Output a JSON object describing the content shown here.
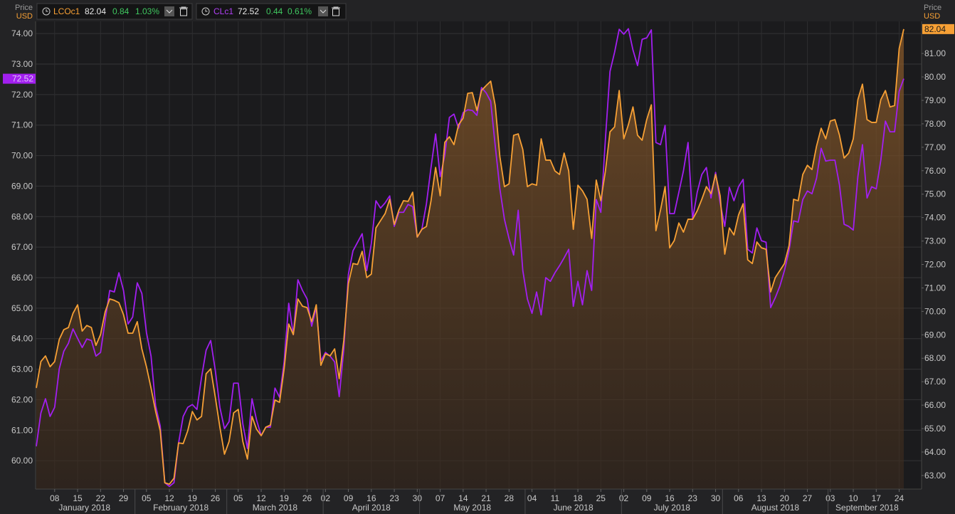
{
  "chart_data": {
    "type": "line",
    "y_label": "Price",
    "y_unit": "USD",
    "y2_label": "Price",
    "y2_unit": "USD",
    "x": [
      "2018-01-02",
      "2018-01-03",
      "2018-01-04",
      "2018-01-05",
      "2018-01-08",
      "2018-01-09",
      "2018-01-10",
      "2018-01-11",
      "2018-01-12",
      "2018-01-15",
      "2018-01-16",
      "2018-01-17",
      "2018-01-18",
      "2018-01-19",
      "2018-01-22",
      "2018-01-23",
      "2018-01-24",
      "2018-01-25",
      "2018-01-26",
      "2018-01-29",
      "2018-01-30",
      "2018-01-31",
      "2018-02-01",
      "2018-02-02",
      "2018-02-05",
      "2018-02-06",
      "2018-02-07",
      "2018-02-08",
      "2018-02-09",
      "2018-02-12",
      "2018-02-13",
      "2018-02-14",
      "2018-02-15",
      "2018-02-16",
      "2018-02-19",
      "2018-02-20",
      "2018-02-21",
      "2018-02-22",
      "2018-02-23",
      "2018-02-26",
      "2018-02-27",
      "2018-02-28",
      "2018-03-01",
      "2018-03-02",
      "2018-03-05",
      "2018-03-06",
      "2018-03-07",
      "2018-03-08",
      "2018-03-09",
      "2018-03-12",
      "2018-03-13",
      "2018-03-14",
      "2018-03-15",
      "2018-03-16",
      "2018-03-19",
      "2018-03-20",
      "2018-03-21",
      "2018-03-22",
      "2018-03-23",
      "2018-03-26",
      "2018-03-27",
      "2018-03-28",
      "2018-03-29",
      "2018-04-02",
      "2018-04-03",
      "2018-04-04",
      "2018-04-05",
      "2018-04-06",
      "2018-04-09",
      "2018-04-10",
      "2018-04-11",
      "2018-04-12",
      "2018-04-13",
      "2018-04-16",
      "2018-04-17",
      "2018-04-18",
      "2018-04-19",
      "2018-04-20",
      "2018-04-23",
      "2018-04-24",
      "2018-04-25",
      "2018-04-26",
      "2018-04-27",
      "2018-04-30",
      "2018-05-01",
      "2018-05-02",
      "2018-05-03",
      "2018-05-04",
      "2018-05-07",
      "2018-05-08",
      "2018-05-09",
      "2018-05-10",
      "2018-05-11",
      "2018-05-14",
      "2018-05-15",
      "2018-05-16",
      "2018-05-17",
      "2018-05-18",
      "2018-05-21",
      "2018-05-22",
      "2018-05-23",
      "2018-05-24",
      "2018-05-25",
      "2018-05-28",
      "2018-05-29",
      "2018-05-30",
      "2018-05-31",
      "2018-06-01",
      "2018-06-04",
      "2018-06-05",
      "2018-06-06",
      "2018-06-07",
      "2018-06-08",
      "2018-06-11",
      "2018-06-12",
      "2018-06-13",
      "2018-06-14",
      "2018-06-15",
      "2018-06-18",
      "2018-06-19",
      "2018-06-20",
      "2018-06-21",
      "2018-06-22",
      "2018-06-25",
      "2018-06-26",
      "2018-06-27",
      "2018-06-28",
      "2018-06-29",
      "2018-07-02",
      "2018-07-03",
      "2018-07-04",
      "2018-07-05",
      "2018-07-06",
      "2018-07-09",
      "2018-07-10",
      "2018-07-11",
      "2018-07-12",
      "2018-07-13",
      "2018-07-16",
      "2018-07-17",
      "2018-07-18",
      "2018-07-19",
      "2018-07-20",
      "2018-07-23",
      "2018-07-24",
      "2018-07-25",
      "2018-07-26",
      "2018-07-27",
      "2018-07-30",
      "2018-07-31",
      "2018-08-01",
      "2018-08-02",
      "2018-08-03",
      "2018-08-06",
      "2018-08-07",
      "2018-08-08",
      "2018-08-09",
      "2018-08-10",
      "2018-08-13",
      "2018-08-14",
      "2018-08-15",
      "2018-08-16",
      "2018-08-17",
      "2018-08-20",
      "2018-08-21",
      "2018-08-22",
      "2018-08-23",
      "2018-08-24",
      "2018-08-27",
      "2018-08-28",
      "2018-08-29",
      "2018-08-30",
      "2018-08-31",
      "2018-09-03",
      "2018-09-04",
      "2018-09-05",
      "2018-09-06",
      "2018-09-07",
      "2018-09-10",
      "2018-09-11",
      "2018-09-12",
      "2018-09-13",
      "2018-09-14",
      "2018-09-17",
      "2018-09-18",
      "2018-09-19",
      "2018-09-20",
      "2018-09-21",
      "2018-09-24",
      "2018-09-25"
    ],
    "xticks": [
      {
        "value": "2018-01-08",
        "label": "08"
      },
      {
        "value": "2018-01-15",
        "label": "15"
      },
      {
        "value": "2018-01-22",
        "label": "22"
      },
      {
        "value": "2018-01-29",
        "label": "29"
      },
      {
        "value": "2018-02-05",
        "label": "05"
      },
      {
        "value": "2018-02-12",
        "label": "12"
      },
      {
        "value": "2018-02-19",
        "label": "19"
      },
      {
        "value": "2018-02-26",
        "label": "26"
      },
      {
        "value": "2018-03-05",
        "label": "05"
      },
      {
        "value": "2018-03-12",
        "label": "12"
      },
      {
        "value": "2018-03-19",
        "label": "19"
      },
      {
        "value": "2018-03-26",
        "label": "26"
      },
      {
        "value": "2018-04-02",
        "label": "02"
      },
      {
        "value": "2018-04-09",
        "label": "09"
      },
      {
        "value": "2018-04-16",
        "label": "16"
      },
      {
        "value": "2018-04-23",
        "label": "23"
      },
      {
        "value": "2018-04-30",
        "label": "30"
      },
      {
        "value": "2018-05-07",
        "label": "07"
      },
      {
        "value": "2018-05-14",
        "label": "14"
      },
      {
        "value": "2018-05-21",
        "label": "21"
      },
      {
        "value": "2018-05-28",
        "label": "28"
      },
      {
        "value": "2018-06-04",
        "label": "04"
      },
      {
        "value": "2018-06-11",
        "label": "11"
      },
      {
        "value": "2018-06-18",
        "label": "18"
      },
      {
        "value": "2018-06-25",
        "label": "25"
      },
      {
        "value": "2018-07-02",
        "label": "02"
      },
      {
        "value": "2018-07-09",
        "label": "09"
      },
      {
        "value": "2018-07-16",
        "label": "16"
      },
      {
        "value": "2018-07-23",
        "label": "23"
      },
      {
        "value": "2018-07-30",
        "label": "30"
      },
      {
        "value": "2018-08-06",
        "label": "06"
      },
      {
        "value": "2018-08-13",
        "label": "13"
      },
      {
        "value": "2018-08-20",
        "label": "20"
      },
      {
        "value": "2018-08-27",
        "label": "27"
      },
      {
        "value": "2018-09-03",
        "label": "03"
      },
      {
        "value": "2018-09-10",
        "label": "10"
      },
      {
        "value": "2018-09-17",
        "label": "17"
      },
      {
        "value": "2018-09-24",
        "label": "24"
      }
    ],
    "xmonths": [
      {
        "value": "2018-01",
        "label": "January 2018"
      },
      {
        "value": "2018-02",
        "label": "February 2018"
      },
      {
        "value": "2018-03",
        "label": "March 2018"
      },
      {
        "value": "2018-04",
        "label": "April 2018"
      },
      {
        "value": "2018-05",
        "label": "May 2018"
      },
      {
        "value": "2018-06",
        "label": "June 2018"
      },
      {
        "value": "2018-07",
        "label": "July 2018"
      },
      {
        "value": "2018-08",
        "label": "August 2018"
      },
      {
        "value": "2018-09",
        "label": "September 2018"
      }
    ],
    "ylim": [
      59.07,
      74.4
    ],
    "yticks": [
      {
        "value": 60,
        "label": "60.00"
      },
      {
        "value": 61,
        "label": "61.00"
      },
      {
        "value": 62,
        "label": "62.00"
      },
      {
        "value": 63,
        "label": "63.00"
      },
      {
        "value": 64,
        "label": "64.00"
      },
      {
        "value": 65,
        "label": "65.00"
      },
      {
        "value": 66,
        "label": "66.00"
      },
      {
        "value": 67,
        "label": "67.00"
      },
      {
        "value": 68,
        "label": "68.00"
      },
      {
        "value": 69,
        "label": "69.00"
      },
      {
        "value": 70,
        "label": "70.00"
      },
      {
        "value": 71,
        "label": "71.00"
      },
      {
        "value": 72,
        "label": "72.00"
      },
      {
        "value": 73,
        "label": "73.00"
      },
      {
        "value": 74,
        "label": "74.00"
      }
    ],
    "y2lim": [
      62.42,
      82.37
    ],
    "y2ticks": [
      {
        "value": 63,
        "label": "63.00"
      },
      {
        "value": 64,
        "label": "64.00"
      },
      {
        "value": 65,
        "label": "65.00"
      },
      {
        "value": 66,
        "label": "66.00"
      },
      {
        "value": 67,
        "label": "67.00"
      },
      {
        "value": 68,
        "label": "68.00"
      },
      {
        "value": 69,
        "label": "69.00"
      },
      {
        "value": 70,
        "label": "70.00"
      },
      {
        "value": 71,
        "label": "71.00"
      },
      {
        "value": 72,
        "label": "72.00"
      },
      {
        "value": 73,
        "label": "73.00"
      },
      {
        "value": 74,
        "label": "74.00"
      },
      {
        "value": 75,
        "label": "75.00"
      },
      {
        "value": 76,
        "label": "76.00"
      },
      {
        "value": 77,
        "label": "77.00"
      },
      {
        "value": 78,
        "label": "78.00"
      },
      {
        "value": 79,
        "label": "79.00"
      },
      {
        "value": 80,
        "label": "80.00"
      },
      {
        "value": 81,
        "label": "81.00"
      }
    ],
    "grid": true,
    "series": [
      {
        "name": "LCOc1",
        "color": "#f7a035",
        "axis": "y2",
        "area": true,
        "last_label": "82.04",
        "change": "0.84",
        "change_pct": "1.03%",
        "values": [
          66.73,
          67.86,
          68.1,
          67.64,
          67.86,
          68.8,
          69.22,
          69.31,
          69.92,
          70.28,
          69.16,
          69.4,
          69.31,
          68.55,
          69.01,
          69.98,
          70.53,
          70.47,
          70.37,
          69.86,
          69.07,
          69.07,
          69.56,
          68.4,
          67.64,
          66.73,
          65.73,
          64.91,
          62.69,
          62.63,
          62.88,
          64.39,
          64.36,
          64.91,
          65.73,
          65.37,
          65.52,
          67.34,
          67.55,
          66.34,
          65.06,
          63.91,
          64.45,
          65.67,
          65.82,
          64.45,
          63.7,
          65.52,
          64.97,
          64.7,
          65.06,
          65.15,
          66.22,
          66.12,
          67.55,
          69.46,
          69.01,
          70.53,
          70.22,
          70.16,
          69.56,
          70.28,
          67.7,
          68.19,
          68.1,
          68.4,
          67.13,
          68.77,
          71.19,
          72.04,
          72.0,
          72.56,
          71.44,
          71.59,
          73.56,
          73.87,
          74.17,
          74.78,
          73.71,
          74.32,
          74.72,
          74.69,
          75.08,
          73.17,
          73.5,
          73.62,
          74.72,
          76.14,
          74.93,
          77.21,
          77.45,
          77.11,
          77.96,
          78.24,
          79.3,
          79.33,
          78.57,
          79.42,
          79.63,
          79.82,
          78.78,
          76.6,
          75.32,
          75.44,
          77.51,
          77.57,
          76.9,
          75.32,
          75.44,
          75.38,
          77.36,
          76.45,
          76.45,
          75.99,
          75.84,
          76.75,
          75.99,
          73.5,
          75.38,
          75.14,
          74.78,
          73.11,
          75.6,
          74.72,
          75.99,
          77.66,
          77.87,
          79.42,
          77.36,
          77.96,
          78.72,
          77.51,
          77.3,
          78.18,
          78.81,
          73.44,
          74.32,
          75.32,
          72.71,
          73.02,
          73.77,
          73.38,
          73.93,
          73.93,
          74.29,
          74.78,
          75.32,
          75.02,
          75.84,
          74.93,
          72.44,
          73.56,
          73.26,
          74.11,
          74.59,
          72.2,
          72.04,
          72.96,
          72.71,
          72.65,
          70.83,
          71.44,
          71.74,
          72.04,
          72.8,
          74.78,
          74.72,
          75.84,
          76.23,
          76.05,
          77.05,
          77.81,
          77.36,
          78.12,
          78.18,
          77.51,
          76.54,
          76.75,
          77.36,
          79.03,
          79.69,
          78.18,
          78.06,
          78.06,
          79.03,
          79.42,
          78.72,
          78.78,
          81.21,
          82.04
        ]
      },
      {
        "name": "CLc1",
        "color": "#a21ff0",
        "axis": "y",
        "area": false,
        "last_label": "72.52",
        "change": "0.44",
        "change_pct": "0.61%",
        "values": [
          60.47,
          61.56,
          62.03,
          61.45,
          61.75,
          63.01,
          63.59,
          63.85,
          64.32,
          64.01,
          63.71,
          63.99,
          63.94,
          63.43,
          63.55,
          64.6,
          65.58,
          65.53,
          66.16,
          65.58,
          64.48,
          64.71,
          65.83,
          65.48,
          64.2,
          63.43,
          61.8,
          61.14,
          59.28,
          59.16,
          59.28,
          60.58,
          61.45,
          61.75,
          61.84,
          61.68,
          62.73,
          63.62,
          63.94,
          62.96,
          61.75,
          61.05,
          61.28,
          62.54,
          62.54,
          61.21,
          60.4,
          62.03,
          61.33,
          60.82,
          61.1,
          61.1,
          62.38,
          62.08,
          63.24,
          65.16,
          64.13,
          65.93,
          65.58,
          65.3,
          64.41,
          65.02,
          63.27,
          63.55,
          63.43,
          63.24,
          62.1,
          63.66,
          66.11,
          66.88,
          67.16,
          67.44,
          66.23,
          67.12,
          68.52,
          68.28,
          68.45,
          68.68,
          67.68,
          68.14,
          68.14,
          68.4,
          68.33,
          67.33,
          67.58,
          68.42,
          69.61,
          70.71,
          69.31,
          70.01,
          71.25,
          71.36,
          70.9,
          71.41,
          71.5,
          71.48,
          71.32,
          72.23,
          72.06,
          71.78,
          70.31,
          68.91,
          67.91,
          67.28,
          66.74,
          68.21,
          66.23,
          65.3,
          64.83,
          65.53,
          64.78,
          66.0,
          65.88,
          66.16,
          66.39,
          66.65,
          66.93,
          65.06,
          65.88,
          65.11,
          66.23,
          65.58,
          68.56,
          68.14,
          70.55,
          72.76,
          73.39,
          74.14,
          73.98,
          74.16,
          73.46,
          72.95,
          73.81,
          73.86,
          74.12,
          70.43,
          70.36,
          70.99,
          68.1,
          68.1,
          68.8,
          69.5,
          70.43,
          67.91,
          68.8,
          69.38,
          69.61,
          68.61,
          69.45,
          68.45,
          67.68,
          68.96,
          68.52,
          68.98,
          69.22,
          66.93,
          66.81,
          67.63,
          67.21,
          67.16,
          65.02,
          65.34,
          65.72,
          66.23,
          66.88,
          67.86,
          67.82,
          68.56,
          68.84,
          68.75,
          69.26,
          70.24,
          69.82,
          69.85,
          69.85,
          69.03,
          67.75,
          67.68,
          67.56,
          69.31,
          70.36,
          68.61,
          68.98,
          68.91,
          69.85,
          71.13,
          70.78,
          70.78,
          72.11,
          72.52
        ]
      }
    ]
  }
}
